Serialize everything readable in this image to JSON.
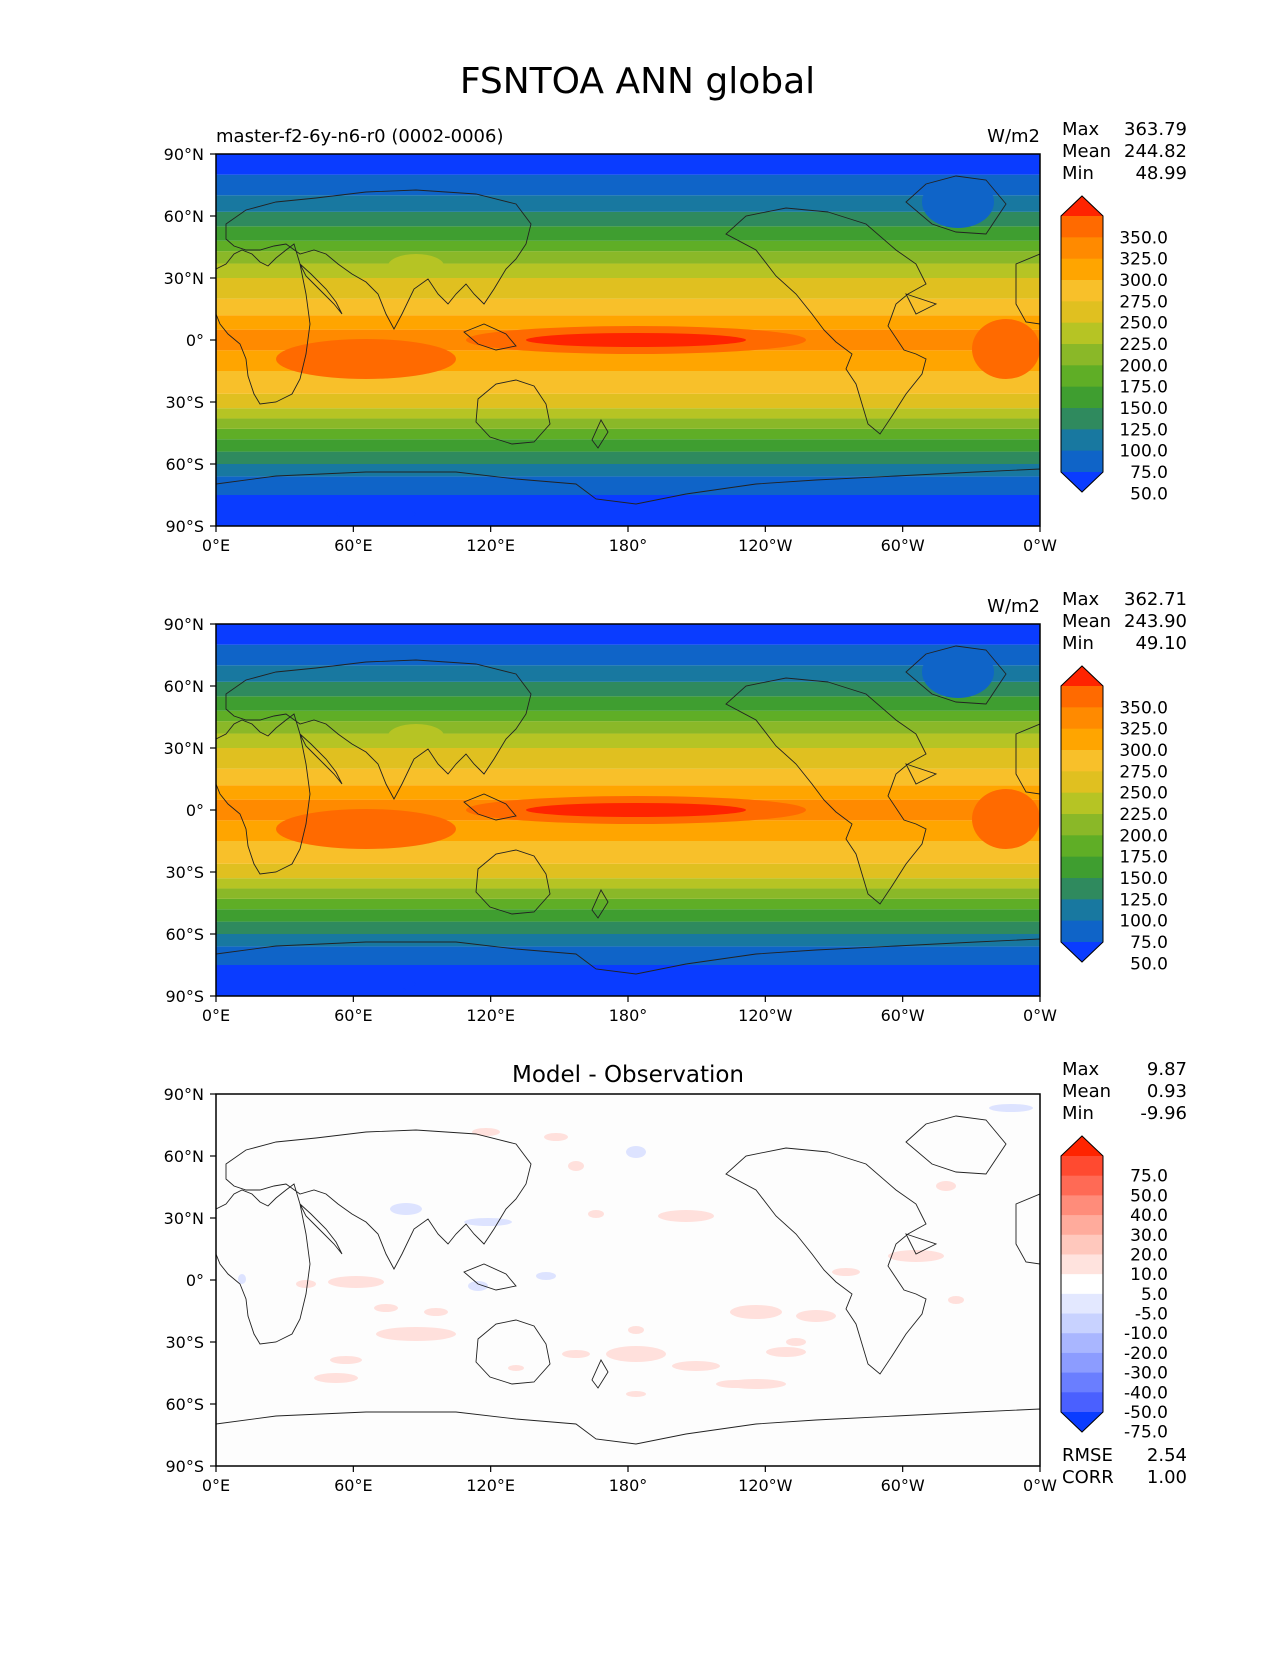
{
  "figure": {
    "title": "FSNTOA ANN global"
  },
  "panels": [
    {
      "id": "test",
      "left_title": "master-f2-6y-n6-r0 (0002-0006)",
      "center_title": "",
      "units": "W/m2",
      "stats": [
        {
          "label": "Max",
          "value": "363.79"
        },
        {
          "label": "Mean",
          "value": "244.82"
        },
        {
          "label": "Min",
          "value": "48.99"
        }
      ],
      "colorbar_labels": [
        "350.0",
        "325.0",
        "300.0",
        "275.0",
        "250.0",
        "225.0",
        "200.0",
        "175.0",
        "150.0",
        "125.0",
        "100.0",
        "75.0",
        "50.0"
      ],
      "colorbar_colors": [
        "#ff2400",
        "#ff6a00",
        "#ff8a00",
        "#ffa500",
        "#f8c02a",
        "#e0c020",
        "#b6c424",
        "#8ab828",
        "#5fae26",
        "#3f9e30",
        "#2f8a5e",
        "#1878a0",
        "#0f64c8",
        "#0a3cff"
      ],
      "footer_stats": []
    },
    {
      "id": "reference",
      "left_title": "",
      "center_title": "",
      "units": "W/m2",
      "stats": [
        {
          "label": "Max",
          "value": "362.71"
        },
        {
          "label": "Mean",
          "value": "243.90"
        },
        {
          "label": "Min",
          "value": "49.10"
        }
      ],
      "colorbar_labels": [
        "350.0",
        "325.0",
        "300.0",
        "275.0",
        "250.0",
        "225.0",
        "200.0",
        "175.0",
        "150.0",
        "125.0",
        "100.0",
        "75.0",
        "50.0"
      ],
      "colorbar_colors": [
        "#ff2400",
        "#ff6a00",
        "#ff8a00",
        "#ffa500",
        "#f8c02a",
        "#e0c020",
        "#b6c424",
        "#8ab828",
        "#5fae26",
        "#3f9e30",
        "#2f8a5e",
        "#1878a0",
        "#0f64c8",
        "#0a3cff"
      ],
      "footer_stats": []
    },
    {
      "id": "difference",
      "left_title": "",
      "center_title": "Model - Observation",
      "units": "",
      "stats": [
        {
          "label": "Max",
          "value": "9.87"
        },
        {
          "label": "Mean",
          "value": "0.93"
        },
        {
          "label": "Min",
          "value": "-9.96"
        }
      ],
      "colorbar_labels": [
        "75.0",
        "50.0",
        "40.0",
        "30.0",
        "20.0",
        "10.0",
        "5.0",
        "-5.0",
        "-10.0",
        "-20.0",
        "-30.0",
        "-40.0",
        "-50.0",
        "-75.0"
      ],
      "colorbar_colors": [
        "#ff2400",
        "#ff4a30",
        "#ff6a55",
        "#ff8c7a",
        "#ffab9c",
        "#ffc8bd",
        "#ffe3de",
        "#ffffff",
        "#e3e8ff",
        "#c8d2ff",
        "#a9b6ff",
        "#8c9cff",
        "#6a7eff",
        "#4a60ff",
        "#0a3cff"
      ],
      "footer_stats": [
        {
          "label": "RMSE",
          "value": "2.54"
        },
        {
          "label": "CORR",
          "value": "1.00"
        }
      ]
    }
  ],
  "axes": {
    "lon_ticks": [
      "0°E",
      "60°E",
      "120°E",
      "180°",
      "120°W",
      "60°W",
      "0°W"
    ],
    "lat_ticks": [
      "90°N",
      "60°N",
      "30°N",
      "0°",
      "30°S",
      "60°S",
      "90°S"
    ]
  }
}
